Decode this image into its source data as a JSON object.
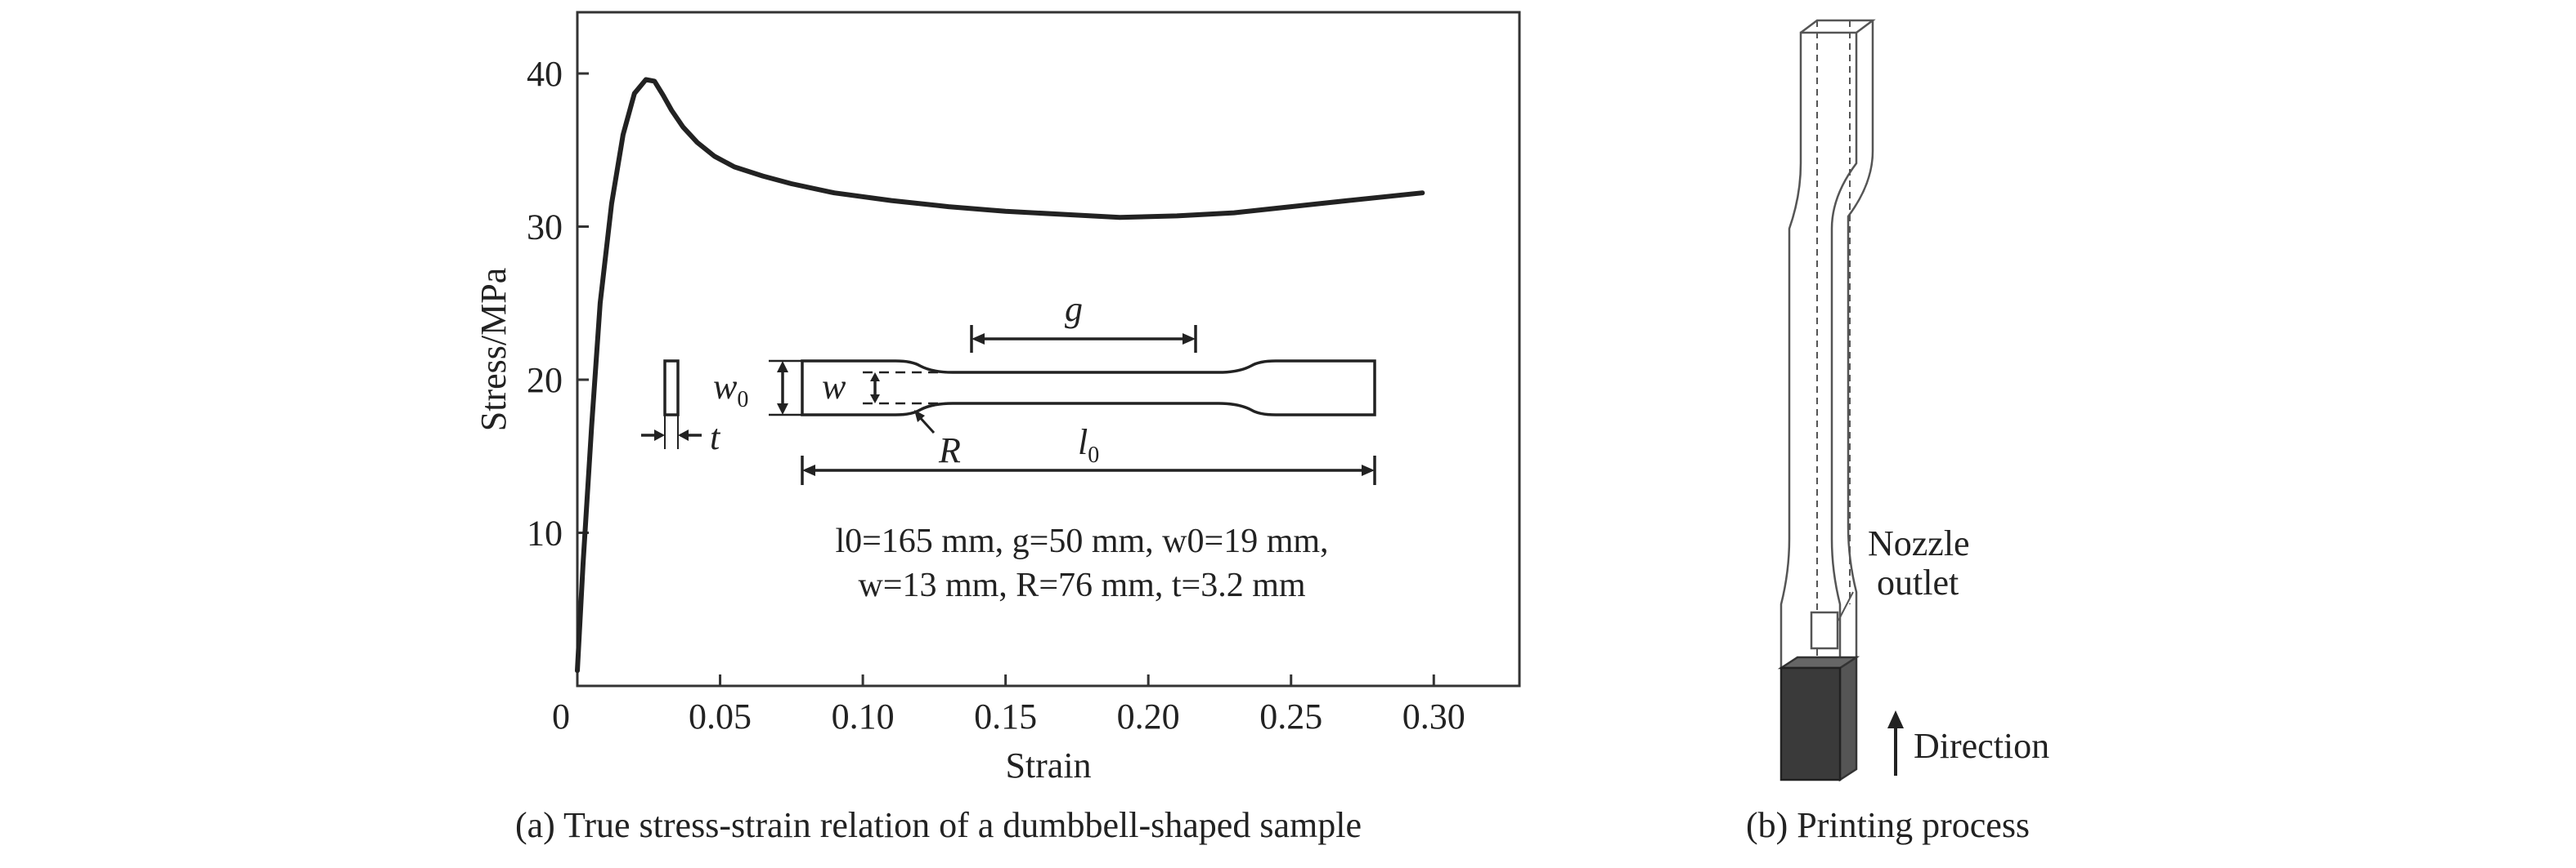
{
  "chart_data": {
    "type": "line",
    "xlabel": "Strain",
    "ylabel": "Stress/MPa",
    "xlim": [
      0,
      0.33
    ],
    "ylim": [
      0,
      44
    ],
    "xticks": [
      0,
      0.05,
      0.1,
      0.15,
      0.2,
      0.25,
      0.3
    ],
    "xtick_labels": [
      "0",
      "0.05",
      "0.10",
      "0.15",
      "0.20",
      "0.25",
      "0.30"
    ],
    "yticks": [
      10,
      20,
      30,
      40
    ],
    "ytick_labels": [
      "10",
      "20",
      "30",
      "40"
    ],
    "grid": false,
    "legend": "none",
    "series": [
      {
        "x": [
          0.0,
          0.002,
          0.005,
          0.008,
          0.012,
          0.016,
          0.02,
          0.024,
          0.027,
          0.03,
          0.033,
          0.037,
          0.042,
          0.048,
          0.055,
          0.065,
          0.075,
          0.09,
          0.11,
          0.13,
          0.15,
          0.17,
          0.19,
          0.21,
          0.23,
          0.25,
          0.27,
          0.296
        ],
        "y": [
          1.0,
          8.0,
          17.0,
          25.0,
          31.5,
          36.0,
          38.7,
          39.6,
          39.5,
          38.6,
          37.6,
          36.5,
          35.5,
          34.6,
          33.9,
          33.3,
          32.8,
          32.2,
          31.7,
          31.3,
          31.0,
          30.8,
          30.6,
          30.7,
          30.9,
          31.3,
          31.7,
          32.2
        ]
      }
    ]
  },
  "inset": {
    "symbols": {
      "g": "g",
      "w0": "w",
      "w0_sub": "0",
      "w": "w",
      "R": "R",
      "l0": "l",
      "l0_sub": "0",
      "t": "t"
    },
    "param_line1": "l0=165 mm, g=50 mm, w0=19 mm,",
    "param_line2": "w=13 mm, R=76 mm, t=3.2 mm"
  },
  "panel_b": {
    "nozzle_label_1": "Nozzle",
    "nozzle_label_2": "outlet",
    "direction_label": "Direction"
  },
  "captions": {
    "a": "(a) True stress-strain relation of a dumbbell-shaped sample",
    "b": "(b) Printing process"
  }
}
